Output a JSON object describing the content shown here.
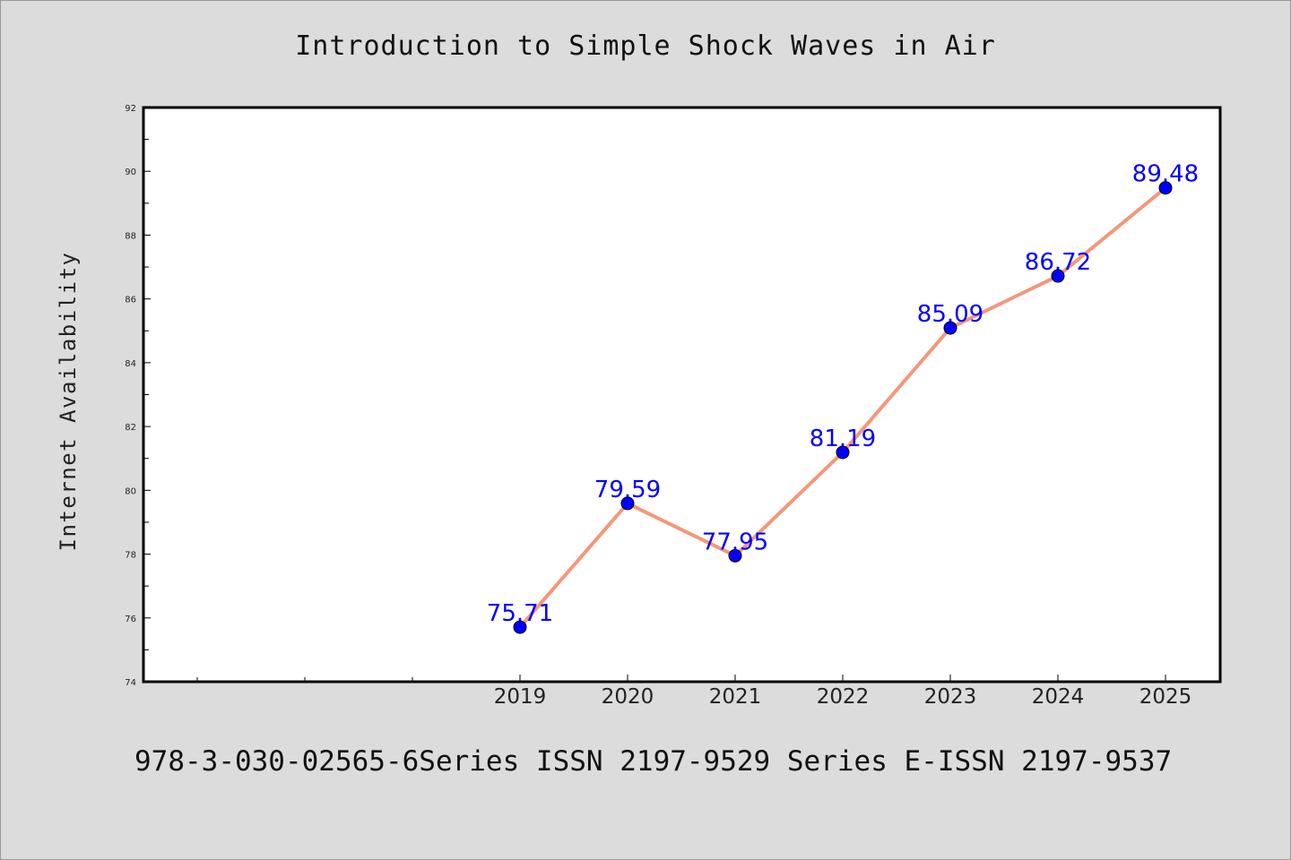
{
  "page": {
    "footer_text": "978-3-030-02565-6Series ISSN 2197-9529 Series E-ISSN 2197-9537"
  },
  "chart_data": {
    "type": "line",
    "title": "Introduction to Simple Shock Waves in Air",
    "xlabel": "",
    "ylabel": "Internet Availability",
    "x": [
      "2019",
      "2020",
      "2021",
      "2022",
      "2023",
      "2024",
      "2025"
    ],
    "series": [
      {
        "values": [
          75.71,
          79.59,
          77.95,
          81.19,
          85.09,
          86.72,
          89.48
        ],
        "data_labels": [
          "75.71",
          "79.59",
          "77.95",
          "81.19",
          "85.09",
          "86.72",
          "89.48"
        ],
        "line_color": "#f4977a",
        "marker_color": "#0000ff"
      }
    ],
    "ylim": [
      74,
      92
    ],
    "yticks": [
      74,
      76,
      78,
      80,
      82,
      84,
      86,
      88,
      90,
      92
    ],
    "x_slots_before_data": 3,
    "grid": false,
    "legend": "none"
  }
}
